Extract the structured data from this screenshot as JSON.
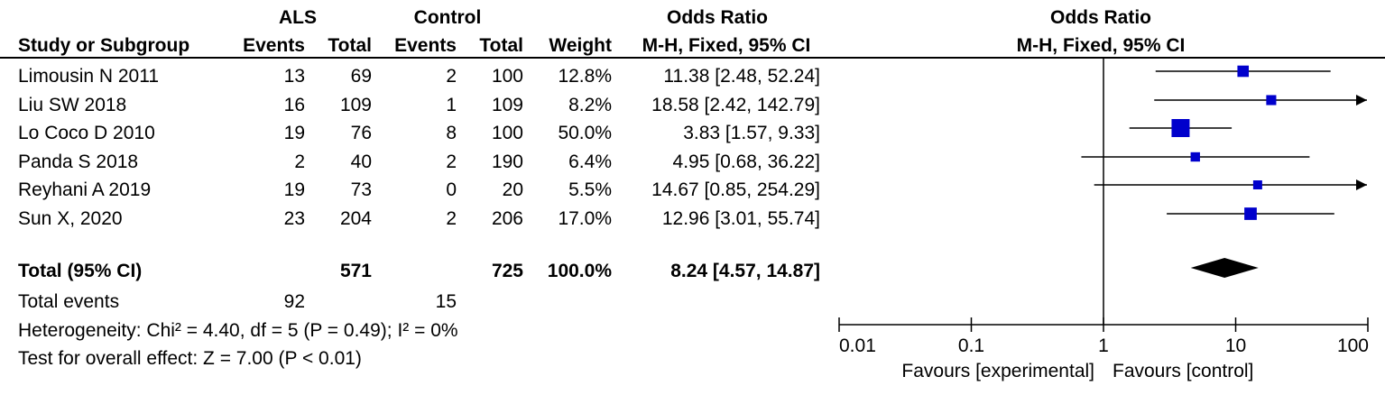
{
  "header": {
    "group1": "ALS",
    "group2": "Control",
    "or_header": "Odds Ratio",
    "or_method": "M-H, Fixed, 95% CI",
    "plot_header": "Odds Ratio",
    "plot_method": "M-H, Fixed, 95% CI",
    "study_col": "Study or Subgroup",
    "events": "Events",
    "total": "Total",
    "weight": "Weight"
  },
  "studies": [
    {
      "name": "Limousin N 2011",
      "e1": "13",
      "t1": "69",
      "e2": "2",
      "t2": "100",
      "weight": "12.8%",
      "ci_text": "11.38 [2.48, 52.24]"
    },
    {
      "name": "Liu SW  2018",
      "e1": "16",
      "t1": "109",
      "e2": "1",
      "t2": "109",
      "weight": "8.2%",
      "ci_text": "18.58 [2.42, 142.79]"
    },
    {
      "name": "Lo Coco D 2010",
      "e1": "19",
      "t1": "76",
      "e2": "8",
      "t2": "100",
      "weight": "50.0%",
      "ci_text": "3.83 [1.57, 9.33]"
    },
    {
      "name": "Panda S  2018",
      "e1": "2",
      "t1": "40",
      "e2": "2",
      "t2": "190",
      "weight": "6.4%",
      "ci_text": "4.95 [0.68, 36.22]"
    },
    {
      "name": "Reyhani A 2019",
      "e1": "19",
      "t1": "73",
      "e2": "0",
      "t2": "20",
      "weight": "5.5%",
      "ci_text": "14.67 [0.85, 254.29]"
    },
    {
      "name": "Sun X, 2020",
      "e1": "23",
      "t1": "204",
      "e2": "2",
      "t2": "206",
      "weight": "17.0%",
      "ci_text": "12.96 [3.01, 55.74]"
    }
  ],
  "total": {
    "label": "Total (95% CI)",
    "t1": "571",
    "t2": "725",
    "weight": "100.0%",
    "ci_text": "8.24 [4.57, 14.87]"
  },
  "total_events": {
    "label": "Total events",
    "e1": "92",
    "e2": "15"
  },
  "heterogeneity": "Heterogeneity: Chi² = 4.40, df = 5 (P = 0.49); I² = 0%",
  "overall_effect": "Test for overall effect: Z = 7.00 (P < 0.01)",
  "colors": {
    "marker": "#0000cc",
    "line": "#000000",
    "diamond": "#000000"
  },
  "chart_data": {
    "type": "forest",
    "xscale": "log",
    "xlim": [
      0.01,
      100
    ],
    "reference_line": 1,
    "ticks": [
      0.01,
      0.1,
      1,
      10,
      100
    ],
    "tick_labels": [
      "0.01",
      "0.1",
      "1",
      "10",
      "100"
    ],
    "favours_left": "Favours [experimental]",
    "favours_right": "Favours [control]",
    "points": [
      {
        "or": 11.38,
        "lo": 2.48,
        "hi": 52.24,
        "weight": 12.8
      },
      {
        "or": 18.58,
        "lo": 2.42,
        "hi": 142.79,
        "weight": 8.2
      },
      {
        "or": 3.83,
        "lo": 1.57,
        "hi": 9.33,
        "weight": 50.0
      },
      {
        "or": 4.95,
        "lo": 0.68,
        "hi": 36.22,
        "weight": 6.4
      },
      {
        "or": 14.67,
        "lo": 0.85,
        "hi": 254.29,
        "weight": 5.5
      },
      {
        "or": 12.96,
        "lo": 3.01,
        "hi": 55.74,
        "weight": 17.0
      }
    ],
    "pooled": {
      "or": 8.24,
      "lo": 4.57,
      "hi": 14.87
    }
  }
}
